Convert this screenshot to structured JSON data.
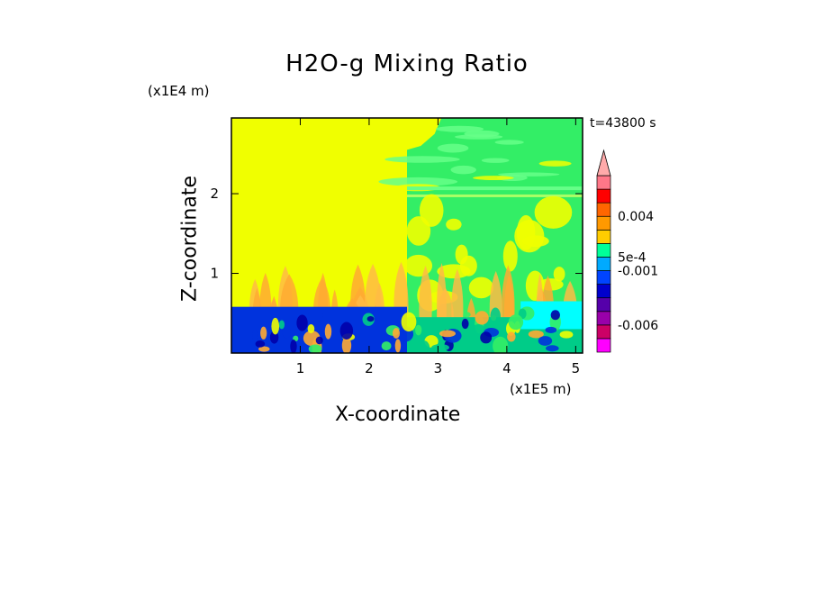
{
  "chart_data": {
    "type": "heatmap",
    "title": "H2O-g Mixing Ratio",
    "xlabel": "X-coordinate",
    "ylabel": "Z-coordinate",
    "x_unit": "(x1E5 m)",
    "y_unit": "(x1E4 m)",
    "time_label": "t=43800 s",
    "xlim": [
      0,
      5.1
    ],
    "ylim": [
      0,
      2.95
    ],
    "x_ticks": [
      "1",
      "2",
      "3",
      "4",
      "5"
    ],
    "y_ticks": [
      "1",
      "2"
    ],
    "colorbar": {
      "labels": [
        "0.004",
        "5e-4",
        "-0.001",
        "-0.006"
      ],
      "colors": [
        "#ff00ff",
        "#cc0066",
        "#9900aa",
        "#5500aa",
        "#0000cc",
        "#0044ff",
        "#00aaff",
        "#00ff99",
        "#ffcc00",
        "#ff9900",
        "#ff6600",
        "#ff0000",
        "#ff7788"
      ],
      "extend": "max"
    },
    "regions": {
      "upper_left_value": "yellow",
      "upper_right_value": "green",
      "boundary_layer_height": 0.58
    }
  }
}
